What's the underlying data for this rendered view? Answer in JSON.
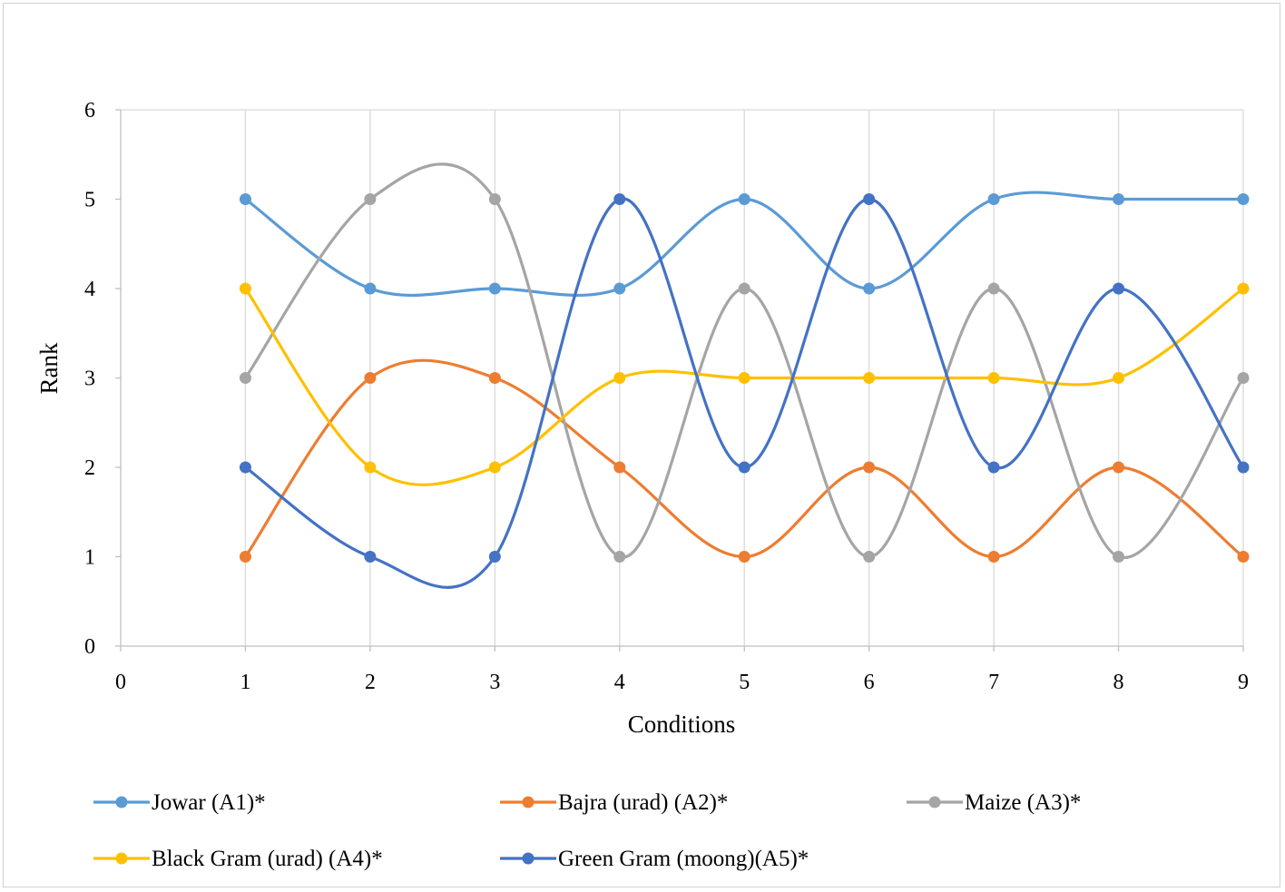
{
  "chart_data": {
    "type": "line",
    "title": "",
    "xlabel": "Conditions",
    "ylabel": "Rank",
    "xlim": [
      0,
      9
    ],
    "ylim": [
      0,
      6
    ],
    "x_ticks": [
      "0",
      "1",
      "2",
      "3",
      "4",
      "5",
      "6",
      "7",
      "8",
      "9"
    ],
    "y_ticks": [
      "0",
      "1",
      "2",
      "3",
      "4",
      "5",
      "6"
    ],
    "grid": "vertical",
    "smooth": true,
    "legend_position": "bottom",
    "x": [
      1,
      2,
      3,
      4,
      5,
      6,
      7,
      8,
      9
    ],
    "series": [
      {
        "name": "Jowar (A1)*",
        "color": "#5B9BD5",
        "values": [
          5,
          4,
          4,
          4,
          5,
          4,
          5,
          5,
          5
        ]
      },
      {
        "name": "Bajra (urad) (A2)*",
        "color": "#ED7D31",
        "values": [
          1,
          3,
          3,
          2,
          1,
          2,
          1,
          2,
          1
        ]
      },
      {
        "name": "Maize (A3)*",
        "color": "#A5A5A5",
        "values": [
          3,
          5,
          5,
          1,
          4,
          1,
          4,
          1,
          3
        ]
      },
      {
        "name": "Black Gram (urad) (A4)*",
        "color": "#FFC000",
        "values": [
          4,
          2,
          2,
          3,
          3,
          3,
          3,
          3,
          4
        ]
      },
      {
        "name": "Green Gram (moong)(A5)*",
        "color": "#4472C4",
        "values": [
          2,
          1,
          1,
          5,
          2,
          5,
          2,
          4,
          2
        ]
      }
    ]
  }
}
